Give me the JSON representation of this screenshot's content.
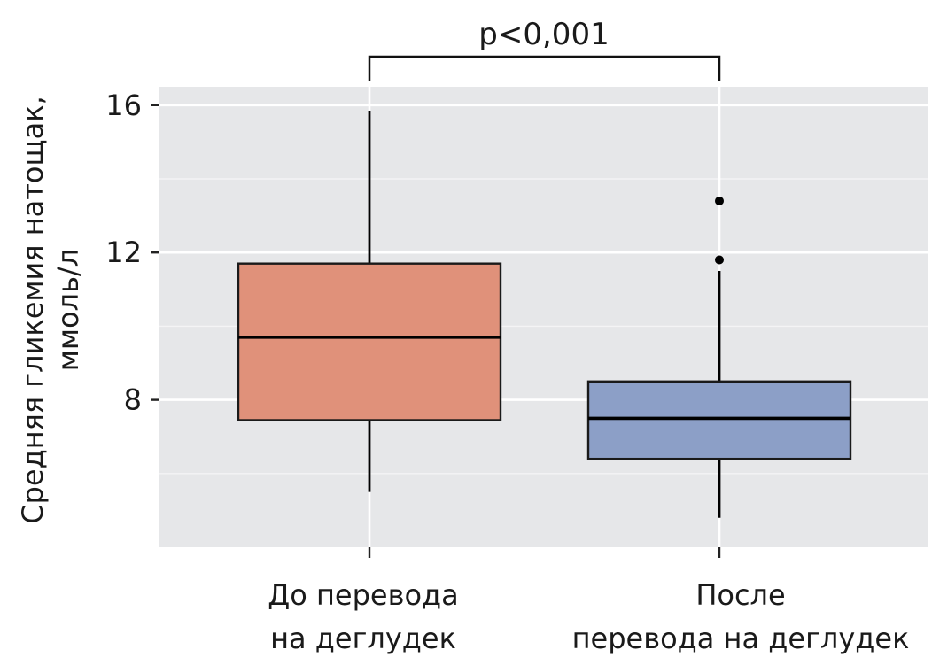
{
  "chart_data": {
    "type": "boxplot",
    "ylabel_lines": [
      "Средняя гликемия натощак,",
      "ммоль/л"
    ],
    "yticks": [
      8,
      12,
      16
    ],
    "ylim": [
      4,
      16.5
    ],
    "grid": true,
    "annotation": "p<0,001",
    "categories": [
      {
        "lines": [
          "До перевода",
          "на деглудек"
        ]
      },
      {
        "lines": [
          "После",
          "перевода на деглудек"
        ]
      }
    ],
    "boxes": [
      {
        "whisker_low": 5.5,
        "q1": 7.45,
        "median": 9.7,
        "q3": 11.7,
        "whisker_high": 15.85,
        "outliers": [],
        "color": "#e0917a"
      },
      {
        "whisker_low": 4.8,
        "q1": 6.4,
        "median": 7.5,
        "q3": 8.5,
        "whisker_high": 11.5,
        "outliers": [
          13.4,
          11.8
        ],
        "color": "#8c9fc7"
      }
    ]
  }
}
